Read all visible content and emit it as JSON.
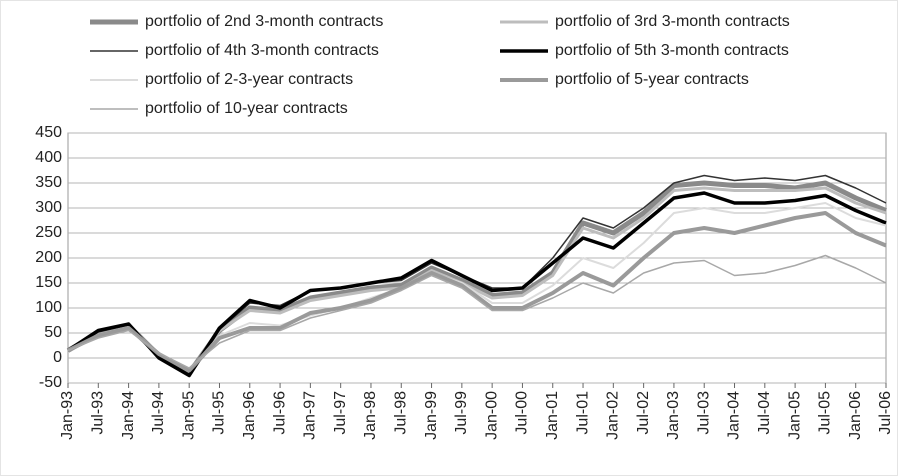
{
  "chart_data": {
    "type": "line",
    "categories": [
      "Jan-93",
      "Jul-93",
      "Jan-94",
      "Jul-94",
      "Jan-95",
      "Jul-95",
      "Jan-96",
      "Jul-96",
      "Jan-97",
      "Jul-97",
      "Jan-98",
      "Jul-98",
      "Jan-99",
      "Jul-99",
      "Jan-00",
      "Jul-00",
      "Jan-01",
      "Jul-01",
      "Jan-02",
      "Jul-02",
      "Jan-03",
      "Jul-03",
      "Jan-04",
      "Jul-04",
      "Jan-05",
      "Jul-05",
      "Jan-06",
      "Jul-06"
    ],
    "series": [
      {
        "name": "portfolio of 2nd 3-month contracts",
        "color": "#8a8a8a",
        "line_width": 5,
        "values": [
          15,
          50,
          65,
          5,
          -30,
          55,
          100,
          95,
          120,
          130,
          140,
          145,
          180,
          155,
          125,
          130,
          170,
          270,
          250,
          290,
          345,
          350,
          345,
          345,
          340,
          350,
          320,
          295
        ]
      },
      {
        "name": "portfolio of 3rd 3-month contracts",
        "color": "#bdbdbd",
        "line_width": 3,
        "values": [
          15,
          50,
          65,
          5,
          -30,
          55,
          95,
          90,
          115,
          125,
          135,
          140,
          175,
          150,
          120,
          125,
          165,
          260,
          240,
          280,
          335,
          340,
          335,
          335,
          335,
          340,
          310,
          290
        ]
      },
      {
        "name": "portfolio of 4th 3-month contracts",
        "color": "#333333",
        "line_width": 1.5,
        "values": [
          15,
          52,
          66,
          3,
          -32,
          57,
          110,
          105,
          135,
          140,
          150,
          155,
          190,
          165,
          140,
          140,
          200,
          280,
          260,
          300,
          350,
          365,
          355,
          360,
          355,
          365,
          340,
          310
        ]
      },
      {
        "name": "portfolio of 5th 3-month contracts",
        "color": "#000000",
        "line_width": 3.5,
        "values": [
          15,
          55,
          68,
          0,
          -35,
          60,
          115,
          100,
          135,
          140,
          150,
          160,
          195,
          165,
          135,
          140,
          190,
          240,
          220,
          270,
          320,
          330,
          310,
          310,
          315,
          325,
          295,
          270
        ]
      },
      {
        "name": "portfolio of 2-3-year contracts",
        "color": "#dcdcdc",
        "line_width": 2,
        "values": [
          15,
          45,
          60,
          8,
          -25,
          45,
          70,
          65,
          85,
          100,
          120,
          140,
          170,
          150,
          110,
          110,
          145,
          200,
          180,
          230,
          290,
          300,
          290,
          290,
          300,
          310,
          280,
          265
        ]
      },
      {
        "name": "portfolio of 5-year contracts",
        "color": "#9a9a9a",
        "line_width": 4,
        "values": [
          15,
          45,
          60,
          8,
          -25,
          40,
          60,
          60,
          90,
          100,
          115,
          140,
          170,
          145,
          100,
          100,
          130,
          170,
          145,
          200,
          250,
          260,
          250,
          265,
          280,
          290,
          250,
          225
        ]
      },
      {
        "name": "portfolio of 10-year contracts",
        "color": "#a8a8a8",
        "line_width": 1.5,
        "values": [
          15,
          40,
          55,
          10,
          -20,
          30,
          55,
          55,
          80,
          95,
          110,
          135,
          165,
          140,
          95,
          95,
          120,
          150,
          130,
          170,
          190,
          195,
          165,
          170,
          185,
          205,
          180,
          150
        ]
      }
    ],
    "ylim": [
      -50,
      450
    ],
    "yticks": [
      -50,
      0,
      50,
      100,
      150,
      200,
      250,
      300,
      350,
      400,
      450
    ],
    "grid": true
  }
}
